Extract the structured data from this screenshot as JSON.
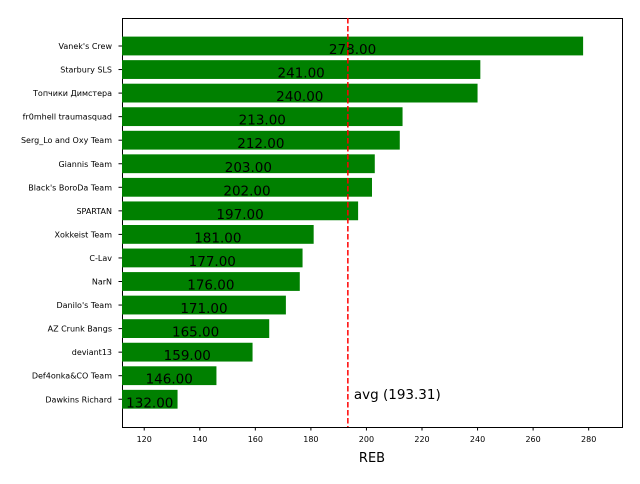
{
  "chart_data": {
    "type": "bar",
    "orientation": "horizontal",
    "categories": [
      "Vanek's Crew",
      "Starbury SLS",
      "Топчики Димстера",
      "fr0mhell traumasquad",
      "Serg_Lo and Oxy Team",
      "Giannis Team",
      "Black's BoroDa Team",
      "SPARTAN",
      "Xokkeist Team",
      "C-Lav",
      "NarN",
      "Danilo's Team",
      "AZ Crunk Bangs",
      "deviant13",
      "Def4onka&CO Team",
      "Dawkins Richard"
    ],
    "values": [
      278,
      241,
      240,
      213,
      212,
      203,
      202,
      197,
      181,
      177,
      176,
      171,
      165,
      159,
      146,
      132
    ],
    "value_labels": [
      "278.00",
      "241.00",
      "240.00",
      "213.00",
      "212.00",
      "203.00",
      "202.00",
      "197.00",
      "181.00",
      "177.00",
      "176.00",
      "171.00",
      "165.00",
      "159.00",
      "146.00",
      "132.00"
    ],
    "xlabel": "REB",
    "xlim": [
      112,
      292
    ],
    "xticks": [
      120,
      140,
      160,
      180,
      200,
      220,
      240,
      260,
      280
    ],
    "bar_color": "#008000",
    "average": {
      "value": 193.31,
      "label": "avg (193.31)",
      "color": "#ff0000"
    },
    "grid": false
  }
}
